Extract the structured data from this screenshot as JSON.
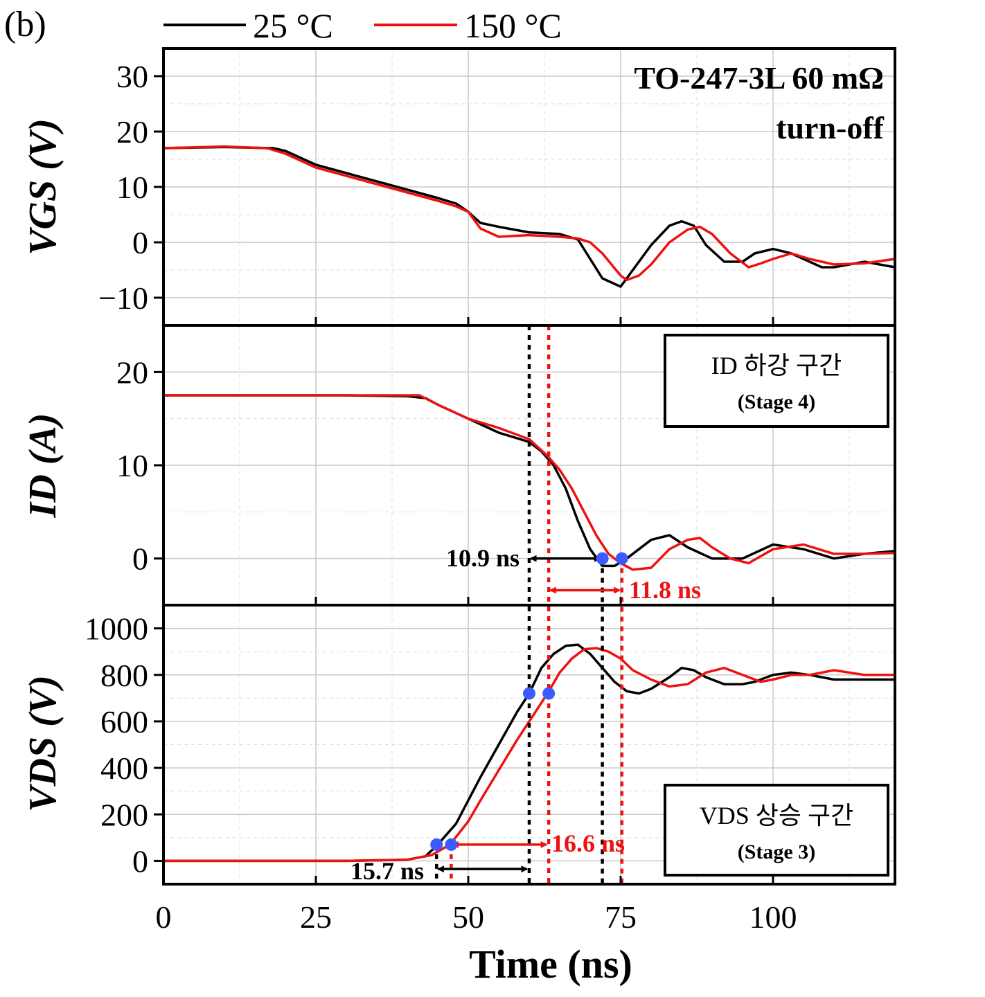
{
  "panel_label": "(b)",
  "legend": [
    {
      "label": "25 °C",
      "color": "#000000"
    },
    {
      "label": "150 °C",
      "color": "#ee1111"
    }
  ],
  "title_line1": "TO-247-3L 60 mΩ",
  "title_line2": "turn-off",
  "xlabel": "Time (ns)",
  "x_ticks": [
    "0",
    "25",
    "50",
    "75",
    "100"
  ],
  "vgs": {
    "ylabel": "VGS (V)",
    "ticks": [
      "30",
      "20",
      "10",
      "0",
      "−10"
    ]
  },
  "id": {
    "ylabel": "ID (A)",
    "ticks": [
      "20",
      "10",
      "0"
    ],
    "box_title": "ID 하강 구간",
    "box_sub": "(Stage 4)"
  },
  "vds": {
    "ylabel": "VDS (V)",
    "ticks": [
      "1000",
      "800",
      "600",
      "400",
      "200",
      "0"
    ],
    "box_title": "VDS 상승 구간",
    "box_sub": "(Stage 3)"
  },
  "annotations": {
    "id_25": "10.9 ns",
    "id_150": "11.8 ns",
    "vds_25": "15.7 ns",
    "vds_150": "16.6 ns"
  },
  "colors": {
    "c25": "#000000",
    "c150": "#ee1111",
    "marker": "#3b5bff"
  },
  "chart_data": [
    {
      "type": "line",
      "title": "TO-247-3L 60 mΩ turn-off",
      "xlabel": "",
      "ylabel": "VGS (V)",
      "xlim": [
        0,
        120
      ],
      "ylim": [
        -15,
        35
      ],
      "series": [
        {
          "name": "25 °C",
          "x": [
            0,
            10,
            18,
            20,
            22,
            25,
            30,
            35,
            40,
            45,
            48,
            50,
            52,
            55,
            60,
            65,
            68,
            70,
            72,
            74,
            75,
            77,
            80,
            83,
            85,
            87,
            89,
            92,
            95,
            97,
            100,
            103,
            105,
            108,
            110,
            115,
            120
          ],
          "y": [
            17,
            17.2,
            17,
            16.5,
            15.5,
            14,
            12.5,
            11,
            9.5,
            8,
            7,
            5.5,
            3.5,
            2.8,
            1.8,
            1.5,
            0.5,
            -3,
            -6.5,
            -7.5,
            -8,
            -5,
            -0.5,
            3,
            3.8,
            3,
            -0.5,
            -3.5,
            -3.5,
            -2,
            -1.2,
            -2,
            -3,
            -4.5,
            -4.5,
            -3.5,
            -4.5
          ]
        },
        {
          "name": "150 °C",
          "x": [
            0,
            10,
            17,
            20,
            22,
            25,
            30,
            35,
            40,
            45,
            48,
            50,
            52,
            55,
            60,
            65,
            68,
            70,
            72,
            75,
            76,
            78,
            80,
            83,
            86,
            88,
            90,
            93,
            96,
            98,
            100,
            103,
            106,
            110,
            115,
            120
          ],
          "y": [
            17,
            17.3,
            17,
            16,
            15,
            13.5,
            12,
            10.5,
            9,
            7.5,
            6.5,
            5.5,
            2.5,
            1,
            1.3,
            1,
            0.7,
            0,
            -2,
            -6,
            -6.8,
            -6,
            -4,
            0,
            2.3,
            2.8,
            1.5,
            -2,
            -4.5,
            -3.8,
            -3,
            -2,
            -3,
            -4,
            -3.8,
            -3
          ]
        }
      ]
    },
    {
      "type": "line",
      "xlabel": "",
      "ylabel": "ID (A)",
      "xlim": [
        0,
        120
      ],
      "ylim": [
        -5,
        25
      ],
      "series": [
        {
          "name": "25 °C",
          "x": [
            0,
            10,
            20,
            30,
            40,
            43,
            45,
            50,
            55,
            60,
            62,
            64,
            66,
            68,
            70,
            72,
            74,
            76,
            80,
            83,
            86,
            90,
            95,
            100,
            105,
            110,
            115,
            120
          ],
          "y": [
            17.5,
            17.5,
            17.5,
            17.5,
            17.4,
            17.2,
            16.5,
            15,
            13.5,
            12.5,
            11.5,
            10,
            7.5,
            4,
            1,
            -0.8,
            -0.8,
            0,
            2,
            2.5,
            1.2,
            0,
            0,
            1.5,
            1,
            0,
            0.5,
            0.8
          ]
        },
        {
          "name": "150 °C",
          "x": [
            0,
            10,
            20,
            30,
            40,
            42,
            45,
            50,
            55,
            60,
            63,
            65,
            67,
            69,
            71,
            73,
            75,
            77,
            80,
            83,
            86,
            88,
            90,
            93,
            96,
            100,
            105,
            110,
            115,
            120
          ],
          "y": [
            17.5,
            17.5,
            17.5,
            17.5,
            17.5,
            17.5,
            16.5,
            15,
            14,
            12.8,
            11,
            9.5,
            7.5,
            5,
            2.5,
            0.5,
            -0.5,
            -1.2,
            -1,
            1,
            2,
            2.2,
            1.2,
            0,
            -0.5,
            1,
            1.5,
            0.5,
            0.5,
            0.6
          ]
        }
      ]
    },
    {
      "type": "line",
      "xlabel": "Time (ns)",
      "ylabel": "VDS (V)",
      "xlim": [
        0,
        120
      ],
      "ylim": [
        -100,
        1100
      ],
      "series": [
        {
          "name": "25 °C",
          "x": [
            0,
            10,
            20,
            30,
            40,
            43,
            45,
            48,
            50,
            52,
            55,
            58,
            60,
            62,
            64,
            66,
            68,
            70,
            72,
            74,
            76,
            78,
            80,
            83,
            85,
            87,
            89,
            92,
            95,
            97,
            100,
            103,
            106,
            110,
            115,
            120
          ],
          "y": [
            0,
            0,
            0,
            0,
            5,
            20,
            70,
            160,
            260,
            360,
            500,
            640,
            720,
            830,
            890,
            925,
            930,
            890,
            830,
            770,
            730,
            720,
            740,
            790,
            830,
            820,
            790,
            760,
            760,
            770,
            800,
            810,
            800,
            780,
            780,
            780
          ]
        },
        {
          "name": "150 °C",
          "x": [
            0,
            10,
            20,
            30,
            40,
            44,
            47,
            50,
            52,
            55,
            58,
            60,
            63,
            65,
            67,
            69,
            71,
            73,
            75,
            77,
            80,
            83,
            86,
            89,
            92,
            95,
            98,
            100,
            103,
            106,
            110,
            115,
            120
          ],
          "y": [
            0,
            0,
            0,
            0,
            5,
            25,
            70,
            170,
            260,
            390,
            520,
            600,
            720,
            810,
            870,
            910,
            915,
            900,
            870,
            820,
            780,
            750,
            760,
            810,
            830,
            800,
            770,
            780,
            800,
            800,
            820,
            800,
            800
          ]
        }
      ]
    }
  ]
}
